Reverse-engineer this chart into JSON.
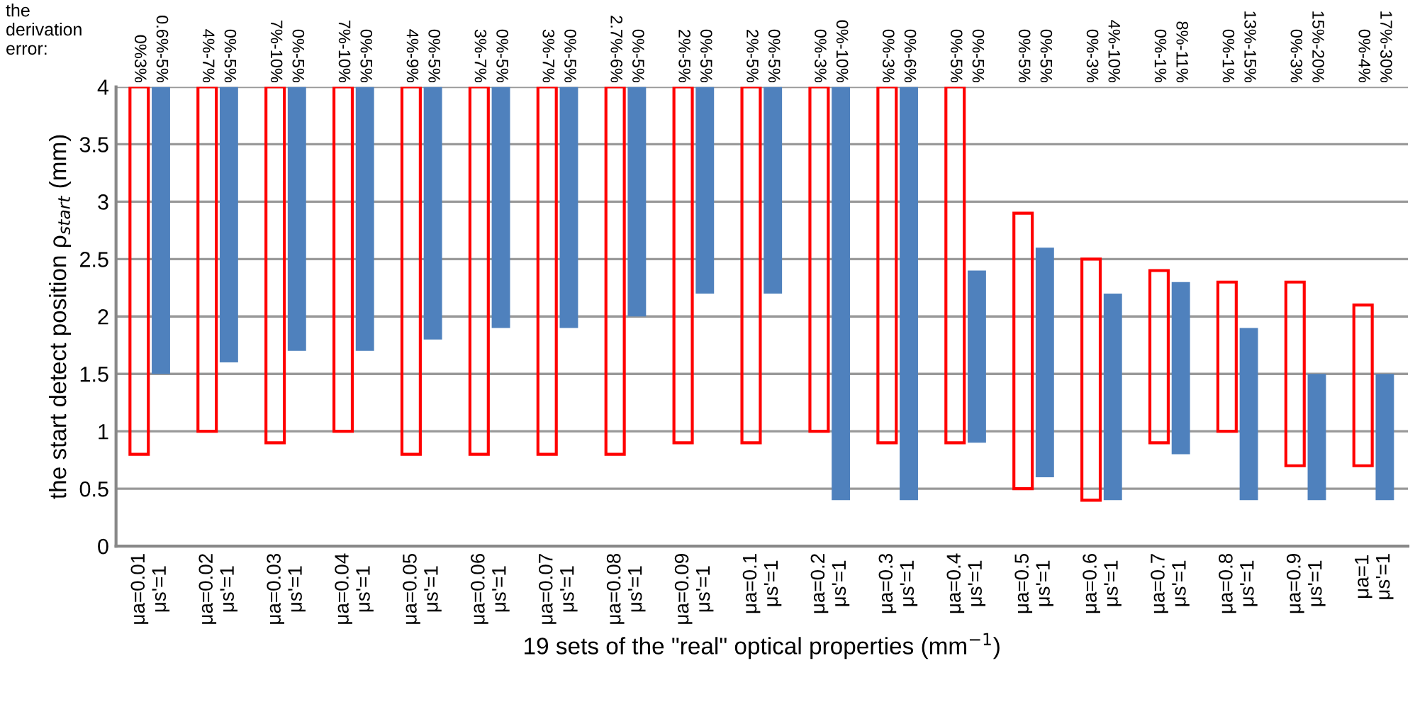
{
  "chart_data": {
    "type": "bar",
    "xlabel": "19 sets of the \"real\" optical properties (mm$^{−1}$)",
    "ylabel": "the start detect position ρ$_{start}$ (mm)",
    "annotations": [
      "the\nderivation\nerror:",
      "0%3%",
      "0.6%-5%",
      "4%-7%",
      "0%-5%",
      "7%-10%",
      "0%-5%",
      "7%-10%",
      "0%-5%",
      "4%-9%",
      "0%-5%",
      "3%-7%",
      "0%-5%",
      "3%-7%",
      "0%-5%",
      "2.7%-6%",
      "0%-5%",
      "2%-5%",
      "0%-5%",
      "2%-5%",
      "0%-5%",
      "0%-3%",
      "0%-10%",
      "0%-3%",
      "0%-6%",
      "0%-5%",
      "0%-5%",
      "0%-5%",
      "0%-5%",
      "0%-3%",
      "4%-10%",
      "0%-1%",
      "8%-11%",
      "0%-1%",
      "13%-15%",
      "0%-3%",
      "15%-20%",
      "0%-4%",
      "17%-30%"
    ],
    "categories": [
      "μa=0.01\nμs'=1",
      "μa=0.02\nμs'=1",
      "μa=0.03\nμs'=1",
      "μa=0.04\nμs'=1",
      "μa=0.05\nμs'=1",
      "μa=0.06\nμs'=1",
      "μa=0.07\nμs'=1",
      "μa=0.08\nμs'=1",
      "μa=0.09\nμs'=1",
      "μa=0.1\nμs'=1",
      "μa=0.2\nμs'=1",
      "μa=0.3\nμs'=1",
      "μa=0.4\nμs'=1",
      "μa=0.5\nμs'=1",
      "μa=0.6\nμs'=1",
      "μa=0.7\nμs'=1",
      "μa=0.8\nμs'=1",
      "μa=0.9\nμs'=1",
      "μa=1\nμs'=1"
    ],
    "series": [
      {
        "color": "#ff0000",
        "base": [
          0.8,
          1,
          0.9,
          1,
          0.8,
          0.8,
          0.8,
          0.8,
          0.9,
          0.9,
          1,
          0.9,
          0.9,
          0.5,
          0.4,
          0.9,
          1,
          0.7,
          0.7
        ],
        "values": [
          3.2,
          3,
          3.1,
          3,
          3.2,
          3.2,
          3.2,
          3.2,
          3.1,
          3.1,
          3,
          3.1,
          3.1,
          2.4,
          2.1,
          1.5,
          1.3,
          1.6,
          1.4
        ]
      },
      {
        "color": "#4f81bd",
        "base": [
          1.5,
          1.6,
          1.7,
          1.7,
          1.8,
          1.9,
          1.9,
          2,
          2.2,
          2.2,
          0.4,
          0.4,
          0.9,
          0.6,
          0.4,
          0.8,
          0.4,
          0.4,
          0.4
        ],
        "values": [
          2.5,
          2.4,
          2.3,
          2.3,
          2.2,
          2.1,
          2.1,
          2,
          1.8,
          1.8,
          3.6,
          3.6,
          1.5,
          2,
          1.8,
          1.5,
          1.5,
          1.1,
          1.1
        ]
      }
    ],
    "ylim": [
      0,
      4
    ],
    "yticks": [
      0,
      0.5,
      1,
      1.5,
      2,
      2.5,
      3,
      3.5,
      4
    ],
    "grid": "y"
  }
}
